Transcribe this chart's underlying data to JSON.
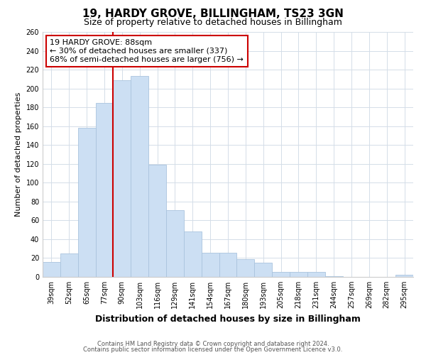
{
  "title": "19, HARDY GROVE, BILLINGHAM, TS23 3GN",
  "subtitle": "Size of property relative to detached houses in Billingham",
  "xlabel": "Distribution of detached houses by size in Billingham",
  "ylabel": "Number of detached properties",
  "categories": [
    "39sqm",
    "52sqm",
    "65sqm",
    "77sqm",
    "90sqm",
    "103sqm",
    "116sqm",
    "129sqm",
    "141sqm",
    "154sqm",
    "167sqm",
    "180sqm",
    "193sqm",
    "205sqm",
    "218sqm",
    "231sqm",
    "244sqm",
    "257sqm",
    "269sqm",
    "282sqm",
    "295sqm"
  ],
  "values": [
    16,
    25,
    158,
    185,
    209,
    213,
    119,
    71,
    48,
    26,
    26,
    19,
    15,
    5,
    5,
    5,
    1,
    0,
    0,
    0,
    2
  ],
  "bar_color": "#ccdff3",
  "bar_edge_color": "#aac4de",
  "marker_line_index": 4,
  "marker_line_color": "#cc0000",
  "annotation_line1": "19 HARDY GROVE: 88sqm",
  "annotation_line2": "← 30% of detached houses are smaller (337)",
  "annotation_line3": "68% of semi-detached houses are larger (756) →",
  "annotation_box_color": "#ffffff",
  "annotation_box_edge_color": "#cc0000",
  "ylim": [
    0,
    260
  ],
  "yticks": [
    0,
    20,
    40,
    60,
    80,
    100,
    120,
    140,
    160,
    180,
    200,
    220,
    240,
    260
  ],
  "footer_line1": "Contains HM Land Registry data © Crown copyright and database right 2024.",
  "footer_line2": "Contains public sector information licensed under the Open Government Licence v3.0.",
  "background_color": "#ffffff",
  "grid_color": "#d4dde8",
  "title_fontsize": 11,
  "subtitle_fontsize": 9,
  "xlabel_fontsize": 9,
  "ylabel_fontsize": 8,
  "tick_fontsize": 7,
  "footer_fontsize": 6,
  "annotation_fontsize": 8
}
